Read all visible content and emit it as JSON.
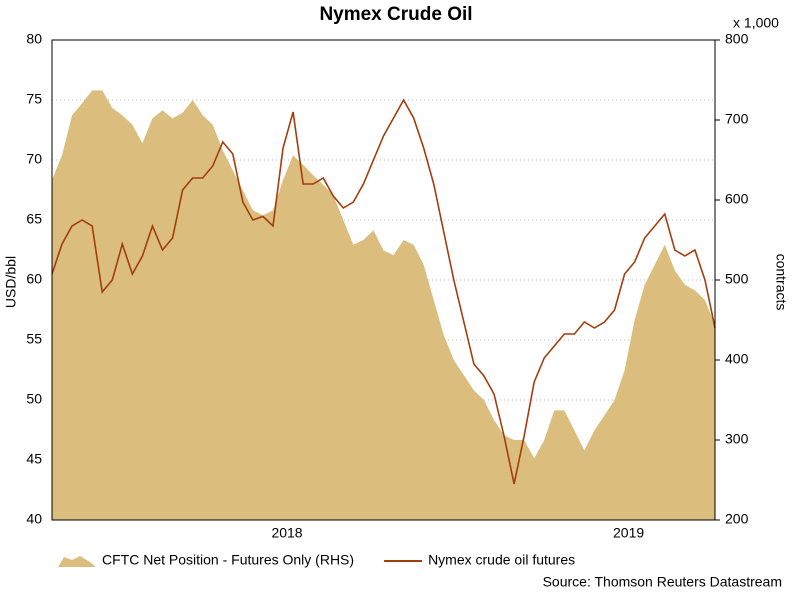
{
  "chart_data": {
    "type": "line",
    "title": "Nymex Crude Oil",
    "y_label": "USD/bbl",
    "y2_label": "contracts",
    "y2_unit": "x 1,000",
    "source": "Source: Thomson Reuters Datastream",
    "categories": [
      null,
      null,
      null,
      null,
      null,
      null,
      null,
      null,
      null,
      null,
      null,
      null,
      null,
      null,
      null,
      null,
      null,
      null,
      null,
      null,
      null,
      null,
      null,
      "2018",
      null,
      null,
      null,
      null,
      null,
      null,
      null,
      null,
      null,
      null,
      null,
      null,
      null,
      null,
      null,
      null,
      null,
      null,
      null,
      null,
      null,
      null,
      null,
      null,
      null,
      null,
      null,
      null,
      null,
      null,
      null,
      null,
      null,
      "2019",
      null,
      null,
      null,
      null,
      null,
      null,
      null,
      null,
      null
    ],
    "series": [
      {
        "name": "CFTC Net Position - Futures Only (RHS)",
        "type": "area",
        "axis": "y2",
        "color": "#dbbd7e",
        "values": [
          625,
          656,
          706,
          721,
          737,
          737,
          715,
          706,
          694,
          671,
          702,
          712,
          702,
          709,
          725,
          706,
          694,
          662,
          637,
          612,
          587,
          581,
          587,
          625,
          656,
          644,
          631,
          619,
          606,
          575,
          544,
          550,
          562,
          537,
          531,
          550,
          544,
          519,
          475,
          431,
          400,
          381,
          362,
          350,
          325,
          306,
          300,
          300,
          277,
          300,
          337,
          337,
          312,
          287,
          312,
          331,
          350,
          387,
          450,
          494,
          519,
          544,
          512,
          494,
          487,
          475,
          444
        ]
      },
      {
        "name": "Nymex crude oil futures",
        "type": "line",
        "axis": "y",
        "color": "#a33d0e",
        "values": [
          60.5,
          63,
          64.5,
          65,
          64.5,
          59,
          60,
          63,
          60.5,
          62,
          64.5,
          62.5,
          63.5,
          67.5,
          68.5,
          68.5,
          69.5,
          71.5,
          70.5,
          66.5,
          65,
          65.3,
          64.5,
          71,
          74,
          68,
          68,
          68.5,
          67,
          66,
          66.5,
          68,
          70,
          72,
          73.5,
          75,
          73.5,
          71,
          68,
          64,
          60,
          56.5,
          53,
          52,
          50.5,
          47,
          43,
          47,
          51.5,
          53.5,
          54.5,
          55.5,
          55.5,
          56.5,
          56,
          56.5,
          57.5,
          60.5,
          61.5,
          63.5,
          64.5,
          65.5,
          62.5,
          62,
          62.5,
          60,
          56
        ]
      }
    ],
    "ylim": [
      40,
      80
    ],
    "yticks": [
      40,
      45,
      50,
      55,
      60,
      65,
      70,
      75,
      80
    ],
    "y2lim": [
      200,
      800
    ],
    "y2ticks": [
      200,
      300,
      400,
      500,
      600,
      700,
      800
    ],
    "grid": true
  }
}
